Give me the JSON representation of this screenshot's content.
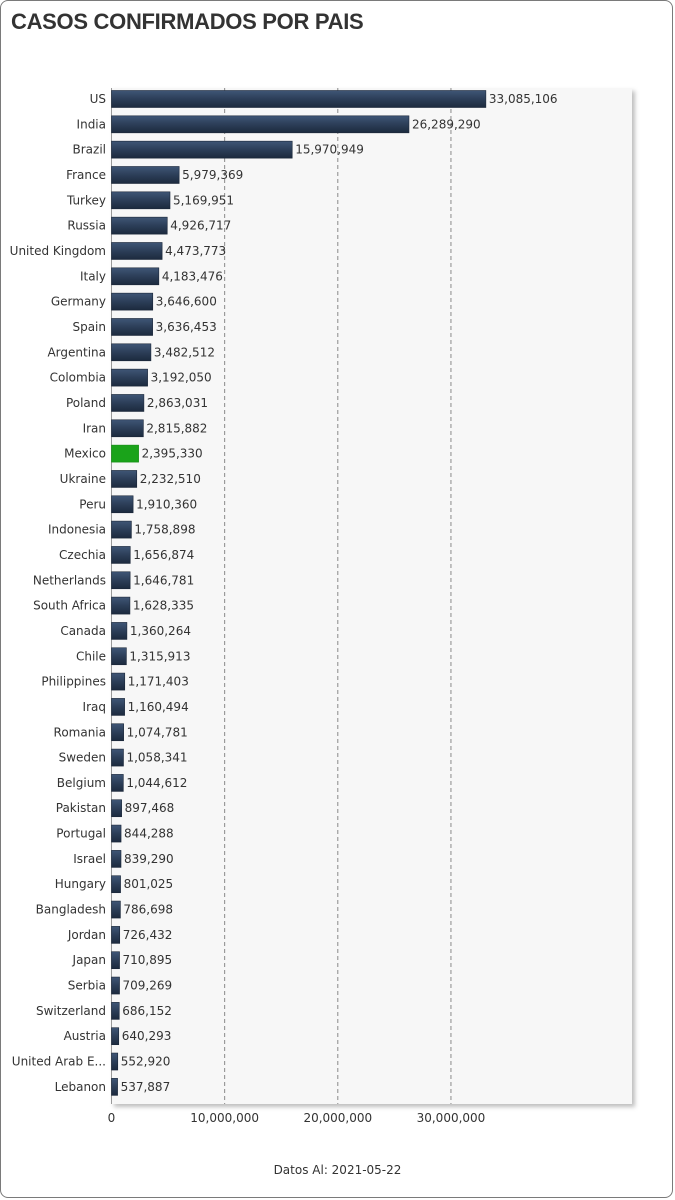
{
  "page": {
    "title": "CASOS CONFIRMADOS POR PAIS",
    "footer": "Datos Al: 2021-05-22"
  },
  "colors": {
    "bar": "#2c3e58",
    "highlight": "#1aa31a"
  },
  "chart_data": {
    "type": "bar",
    "orientation": "horizontal",
    "title": "CASOS CONFIRMADOS POR PAIS",
    "xlabel": "",
    "ylabel": "",
    "xlim": [
      0,
      46000000
    ],
    "xticks": [
      0,
      10000000,
      20000000,
      30000000
    ],
    "xtick_labels": [
      "0",
      "10,000,000",
      "20,000,000",
      "30,000,000"
    ],
    "grid": "vertical dashed",
    "highlighted": "Mexico",
    "categories": [
      "US",
      "India",
      "Brazil",
      "France",
      "Turkey",
      "Russia",
      "United Kingdom",
      "Italy",
      "Germany",
      "Spain",
      "Argentina",
      "Colombia",
      "Poland",
      "Iran",
      "Mexico",
      "Ukraine",
      "Peru",
      "Indonesia",
      "Czechia",
      "Netherlands",
      "South Africa",
      "Canada",
      "Chile",
      "Philippines",
      "Iraq",
      "Romania",
      "Sweden",
      "Belgium",
      "Pakistan",
      "Portugal",
      "Israel",
      "Hungary",
      "Bangladesh",
      "Jordan",
      "Japan",
      "Serbia",
      "Switzerland",
      "Austria",
      "United Arab E...",
      "Lebanon"
    ],
    "values": [
      33085106,
      26289290,
      15970949,
      5979369,
      5169951,
      4926717,
      4473773,
      4183476,
      3646600,
      3636453,
      3482512,
      3192050,
      2863031,
      2815882,
      2395330,
      2232510,
      1910360,
      1758898,
      1656874,
      1646781,
      1628335,
      1360264,
      1315913,
      1171403,
      1160494,
      1074781,
      1058341,
      1044612,
      897468,
      844288,
      839290,
      801025,
      786698,
      726432,
      710895,
      709269,
      686152,
      640293,
      552920,
      537887
    ],
    "value_labels": [
      "33,085,106",
      "26,289,290",
      "15,970,949",
      "5,979,369",
      "5,169,951",
      "4,926,717",
      "4,473,773",
      "4,183,476",
      "3,646,600",
      "3,636,453",
      "3,482,512",
      "3,192,050",
      "2,863,031",
      "2,815,882",
      "2,395,330",
      "2,232,510",
      "1,910,360",
      "1,758,898",
      "1,656,874",
      "1,646,781",
      "1,628,335",
      "1,360,264",
      "1,315,913",
      "1,171,403",
      "1,160,494",
      "1,074,781",
      "1,058,341",
      "1,044,612",
      "897,468",
      "844,288",
      "839,290",
      "801,025",
      "786,698",
      "726,432",
      "710,895",
      "709,269",
      "686,152",
      "640,293",
      "552,920",
      "537,887"
    ]
  }
}
